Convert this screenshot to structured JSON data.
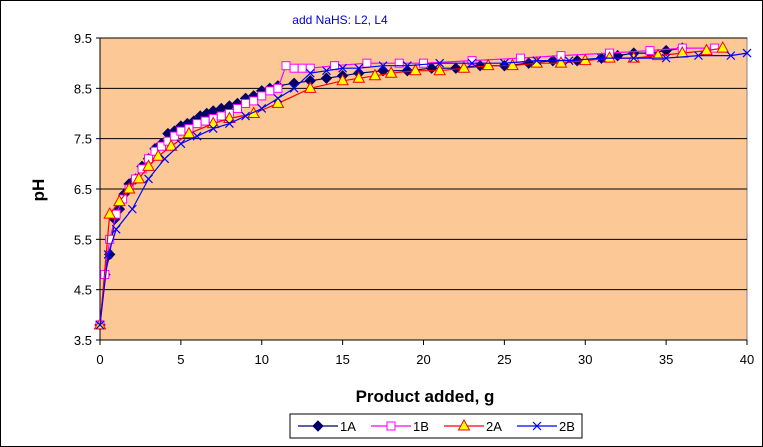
{
  "chart_data": {
    "type": "line",
    "title": "add NaHS: L2, L4",
    "xlabel": "Product added, g",
    "ylabel": "pH",
    "xlim": [
      0,
      40
    ],
    "ylim": [
      3.5,
      9.5
    ],
    "x_ticks": [
      "0",
      "5",
      "10",
      "15",
      "20",
      "25",
      "30",
      "35",
      "40"
    ],
    "y_ticks": [
      "3.5",
      "4.5",
      "5.5",
      "6.5",
      "7.5",
      "8.5",
      "9.5"
    ],
    "grid": "horizontal",
    "legend_position": "bottom",
    "plot_background": "#fcc996",
    "series": [
      {
        "name": "1A",
        "color": "#000066",
        "marker": "diamond",
        "x": [
          0,
          0.3,
          0.6,
          0.9,
          1.2,
          1.5,
          1.8,
          2.2,
          2.6,
          3.0,
          3.4,
          3.8,
          4.2,
          4.6,
          5.0,
          5.4,
          5.8,
          6.2,
          6.6,
          7.0,
          7.5,
          8.0,
          8.5,
          9.0,
          9.5,
          10.0,
          10.5,
          11.0,
          12.0,
          13.0,
          14.0,
          15.0,
          16.0,
          17.5,
          19.0,
          20.5,
          22.0,
          23.5,
          25.0,
          26.5,
          28.0,
          29.5,
          31.0,
          32.0,
          33.0,
          34.0,
          35.0,
          36.0
        ],
        "y": [
          3.8,
          4.8,
          5.2,
          5.9,
          6.1,
          6.4,
          6.6,
          6.7,
          6.95,
          7.1,
          7.3,
          7.4,
          7.6,
          7.65,
          7.75,
          7.8,
          7.85,
          7.95,
          8.0,
          8.05,
          8.1,
          8.15,
          8.2,
          8.3,
          8.35,
          8.45,
          8.5,
          8.55,
          8.6,
          8.65,
          8.7,
          8.75,
          8.8,
          8.85,
          8.85,
          8.9,
          8.9,
          8.95,
          8.95,
          9.0,
          9.05,
          9.05,
          9.1,
          9.15,
          9.2,
          9.2,
          9.25,
          9.3
        ]
      },
      {
        "name": "1B",
        "color": "#ff00ff",
        "marker": "square",
        "x": [
          0,
          0.3,
          0.6,
          1.0,
          1.4,
          1.8,
          2.2,
          2.6,
          3.0,
          3.4,
          3.8,
          4.2,
          4.6,
          5.0,
          5.5,
          6.0,
          6.5,
          7.0,
          7.5,
          8.0,
          8.5,
          9.0,
          9.5,
          10.0,
          10.5,
          11.0,
          11.5,
          12.0,
          12.5,
          13.0,
          14.5,
          16.5,
          18.5,
          20.0,
          23.0,
          26.0,
          28.5,
          31.5,
          34.0,
          36.0,
          38.0
        ],
        "y": [
          3.8,
          4.8,
          5.5,
          6.0,
          6.3,
          6.5,
          6.7,
          6.9,
          7.1,
          7.25,
          7.35,
          7.45,
          7.55,
          7.65,
          7.7,
          7.8,
          7.85,
          7.9,
          7.95,
          8.0,
          8.1,
          8.2,
          8.25,
          8.35,
          8.45,
          8.5,
          8.95,
          8.9,
          8.9,
          8.9,
          8.95,
          9.0,
          9.0,
          9.0,
          9.05,
          9.1,
          9.15,
          9.2,
          9.25,
          9.3,
          9.3
        ]
      },
      {
        "name": "2A",
        "color": "#ff0000",
        "marker": "triangle",
        "x": [
          0,
          0.6,
          1.2,
          1.8,
          2.4,
          3.0,
          3.6,
          4.4,
          5.5,
          7.0,
          8.0,
          9.5,
          11.0,
          13.0,
          15.0,
          16.0,
          17.0,
          18.0,
          19.5,
          21.0,
          22.5,
          24.0,
          25.5,
          27.0,
          28.5,
          30.0,
          31.5,
          33.0,
          34.5,
          36.0,
          37.5,
          38.5
        ],
        "y": [
          3.8,
          6.0,
          6.25,
          6.5,
          6.7,
          6.95,
          7.15,
          7.35,
          7.6,
          7.8,
          7.9,
          8.0,
          8.2,
          8.5,
          8.65,
          8.7,
          8.75,
          8.8,
          8.85,
          8.85,
          8.9,
          8.95,
          8.95,
          9.0,
          9.0,
          9.05,
          9.1,
          9.1,
          9.15,
          9.2,
          9.25,
          9.3
        ]
      },
      {
        "name": "2B",
        "color": "#0000ff",
        "marker": "x",
        "x": [
          0,
          0.5,
          1.0,
          2.0,
          3.0,
          4.0,
          5.0,
          6.0,
          7.0,
          8.0,
          9.0,
          10.0,
          11.0,
          12.0,
          13.0,
          14.0,
          15.0,
          16.0,
          17.5,
          19.0,
          21.0,
          23.0,
          25.0,
          27.0,
          29.0,
          31.0,
          33.0,
          35.0,
          37.0,
          39.0,
          40.0
        ],
        "y": [
          3.8,
          5.2,
          5.7,
          6.1,
          6.7,
          7.1,
          7.4,
          7.55,
          7.7,
          7.8,
          7.95,
          8.1,
          8.3,
          8.5,
          8.8,
          8.85,
          8.9,
          8.9,
          8.95,
          8.95,
          9.0,
          9.0,
          9.0,
          9.05,
          9.05,
          9.1,
          9.1,
          9.1,
          9.15,
          9.15,
          9.2
        ]
      }
    ]
  }
}
